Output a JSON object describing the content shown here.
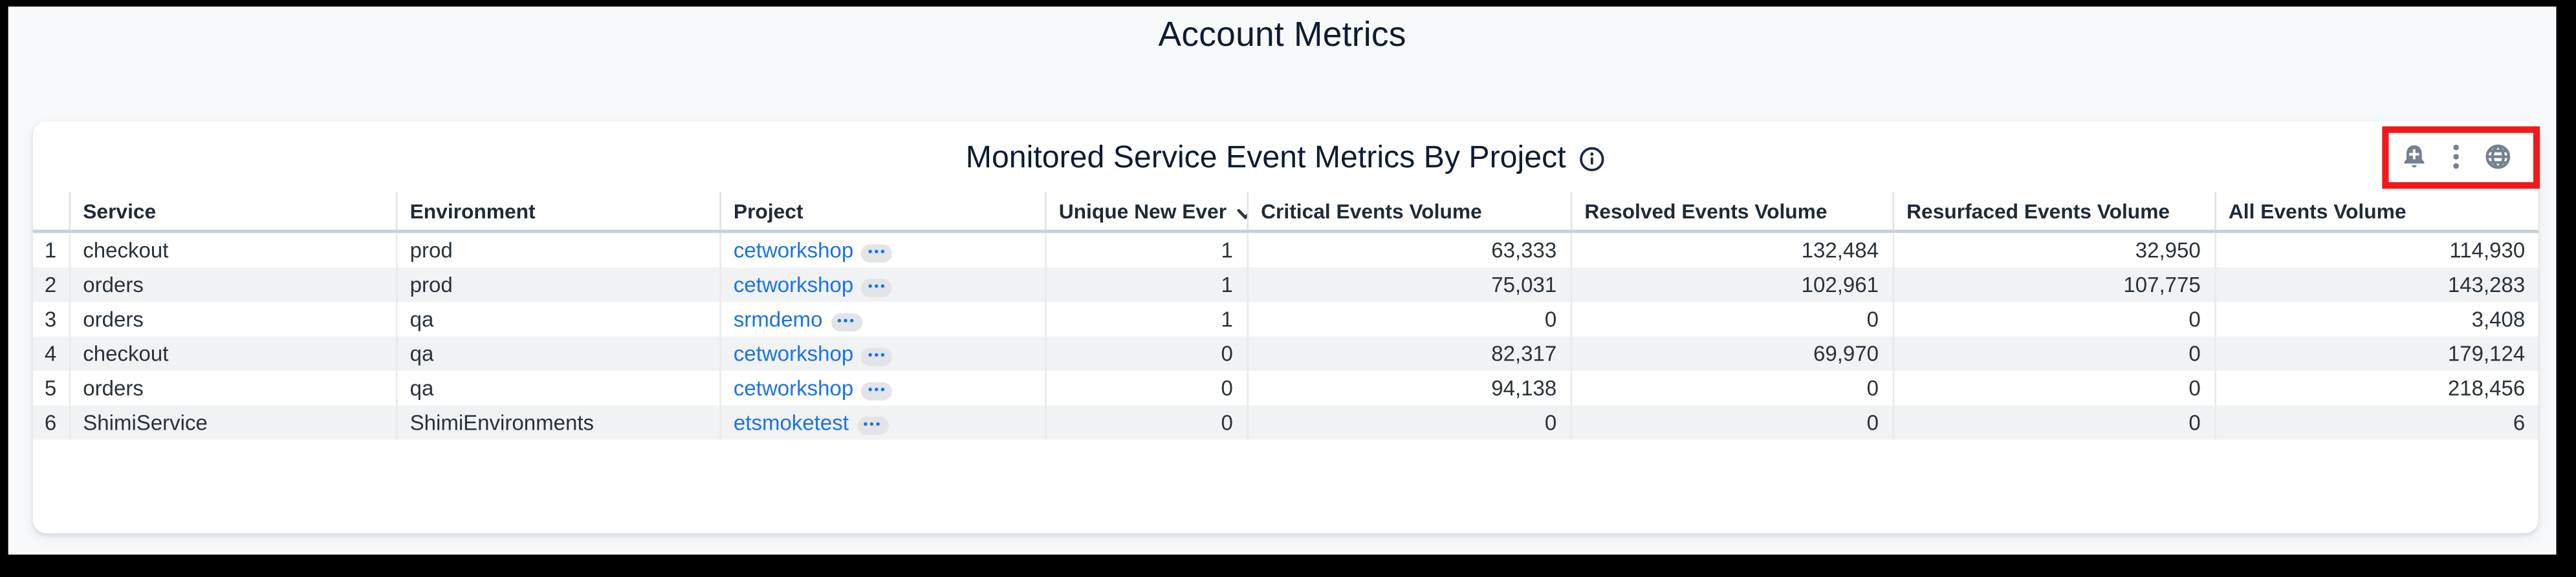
{
  "page": {
    "title": "Account Metrics"
  },
  "panel": {
    "title": "Monitored Service Event Metrics By Project",
    "toolbar": {
      "bell_plus_icon": "add-alert",
      "kebab_menu_icon": "more-options",
      "globe_icon": "globe",
      "highlight_color": "#ef1a1a"
    }
  },
  "table": {
    "row_number_header": "",
    "ellipsis_badge": "•••",
    "sorted_column": "Unique New Ever",
    "sort_direction": "desc",
    "columns": [
      {
        "label": "Service"
      },
      {
        "label": "Environment"
      },
      {
        "label": "Project"
      },
      {
        "label": "Unique New Ever",
        "sorted": true
      },
      {
        "label": "Critical Events Volume"
      },
      {
        "label": "Resolved Events Volume"
      },
      {
        "label": "Resurfaced Events Volume"
      },
      {
        "label": "All Events Volume"
      }
    ],
    "rows": [
      {
        "num": "1",
        "service": "checkout",
        "environment": "prod",
        "project": "cetworkshop",
        "unique_new_events": "1",
        "critical_events_volume": "63,333",
        "resolved_events_volume": "132,484",
        "resurfaced_events_volume": "32,950",
        "all_events_volume": "114,930"
      },
      {
        "num": "2",
        "service": "orders",
        "environment": "prod",
        "project": "cetworkshop",
        "unique_new_events": "1",
        "critical_events_volume": "75,031",
        "resolved_events_volume": "102,961",
        "resurfaced_events_volume": "107,775",
        "all_events_volume": "143,283"
      },
      {
        "num": "3",
        "service": "orders",
        "environment": "qa",
        "project": "srmdemo",
        "unique_new_events": "1",
        "critical_events_volume": "0",
        "resolved_events_volume": "0",
        "resurfaced_events_volume": "0",
        "all_events_volume": "3,408"
      },
      {
        "num": "4",
        "service": "checkout",
        "environment": "qa",
        "project": "cetworkshop",
        "unique_new_events": "0",
        "critical_events_volume": "82,317",
        "resolved_events_volume": "69,970",
        "resurfaced_events_volume": "0",
        "all_events_volume": "179,124"
      },
      {
        "num": "5",
        "service": "orders",
        "environment": "qa",
        "project": "cetworkshop",
        "unique_new_events": "0",
        "critical_events_volume": "94,138",
        "resolved_events_volume": "0",
        "resurfaced_events_volume": "0",
        "all_events_volume": "218,456"
      },
      {
        "num": "6",
        "service": "ShimiService",
        "environment": "ShimiEnvironments",
        "project": "etsmoketest",
        "unique_new_events": "0",
        "critical_events_volume": "0",
        "resolved_events_volume": "0",
        "resurfaced_events_volume": "0",
        "all_events_volume": "6"
      }
    ]
  },
  "colors": {
    "page_background": "#f8f9fb",
    "card_background": "#ffffff",
    "link_blue": "#1a73e8",
    "row_stripe": "#f1f2f3",
    "divider": "#e7e9eb",
    "header_text": "#1f2a37",
    "body_text": "#29323b",
    "title_navy": "#0e1c31",
    "icon_gray": "#76818f",
    "annotation_red": "#ef1a1a"
  }
}
